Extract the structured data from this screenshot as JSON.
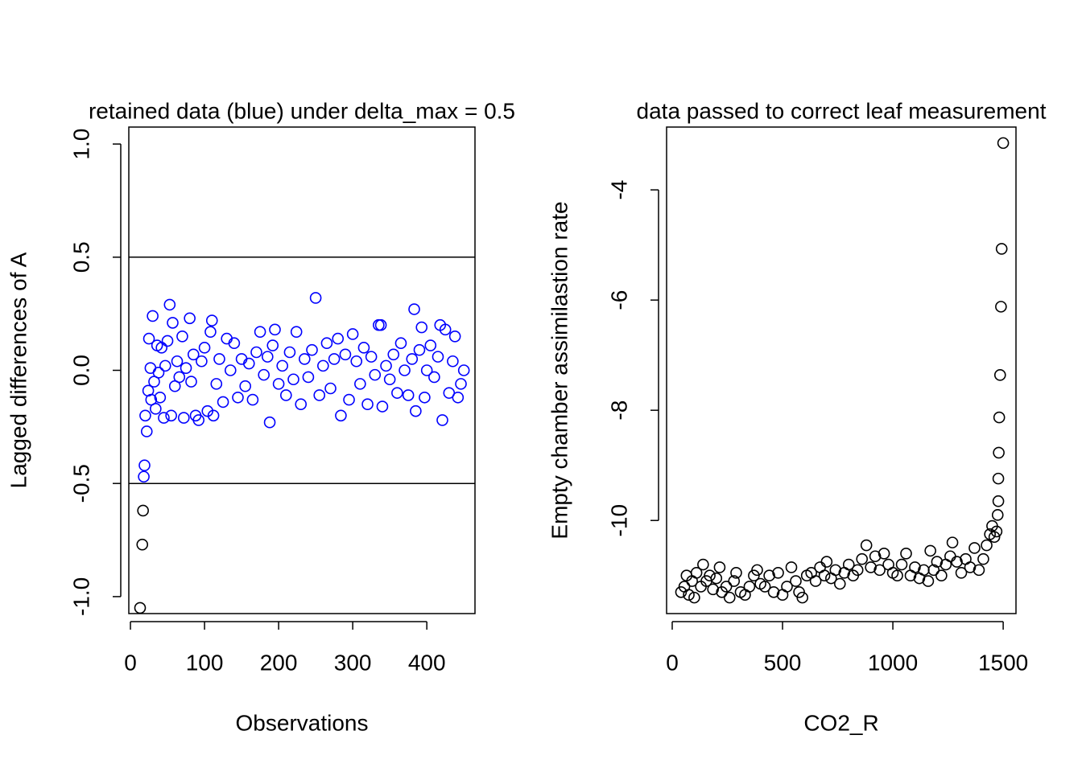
{
  "chart_data": [
    {
      "type": "scatter",
      "title": "retained data (blue) under delta_max =  0.5",
      "xlabel": "Observations",
      "ylabel": "Lagged differences of A",
      "xlim": [
        -2.2,
        465
      ],
      "ylim": [
        -1.075,
        1.075
      ],
      "xticks": [
        0,
        100,
        200,
        300,
        400
      ],
      "yticks": [
        {
          "value": -1,
          "label": "-1.0"
        },
        -0.5,
        {
          "value": 0,
          "label": "0.0"
        },
        0.5,
        {
          "value": 1,
          "label": "1.0"
        }
      ],
      "hlines": [
        -0.5,
        0.5
      ],
      "series": [
        {
          "color": "#000000",
          "x": [
            13,
            16,
            17
          ],
          "values": [
            -1.05,
            -0.77,
            -0.62
          ]
        },
        {
          "color": "#0000ff",
          "x": [
            18,
            19,
            20,
            22,
            24,
            25,
            27,
            28,
            30,
            32,
            34,
            36,
            38,
            40,
            42,
            45,
            47,
            50,
            53,
            55,
            57,
            60,
            63,
            66,
            70,
            72,
            75,
            80,
            82,
            85,
            88,
            92,
            96,
            100,
            104,
            108,
            110,
            112,
            116,
            120,
            125,
            130,
            135,
            140,
            145,
            150,
            155,
            160,
            165,
            170,
            175,
            180,
            185,
            188,
            192,
            195,
            200,
            205,
            210,
            215,
            220,
            224,
            230,
            235,
            240,
            245,
            250,
            255,
            260,
            265,
            270,
            275,
            280,
            284,
            290,
            295,
            300,
            305,
            310,
            315,
            320,
            325,
            330,
            335,
            338,
            340,
            345,
            350,
            355,
            360,
            365,
            370,
            375,
            380,
            383,
            385,
            390,
            393,
            397,
            400,
            405,
            410,
            415,
            418,
            421,
            425,
            430,
            435,
            438,
            442,
            446,
            450
          ],
          "values": [
            -0.47,
            -0.42,
            -0.2,
            -0.27,
            -0.09,
            0.14,
            0.01,
            -0.13,
            0.24,
            -0.05,
            -0.17,
            0.11,
            -0.01,
            -0.12,
            0.1,
            -0.21,
            0.02,
            0.13,
            0.29,
            -0.2,
            0.21,
            -0.07,
            0.04,
            -0.03,
            0.15,
            -0.21,
            0.01,
            0.23,
            -0.05,
            0.07,
            -0.2,
            -0.22,
            0.04,
            0.1,
            -0.18,
            0.17,
            0.22,
            -0.2,
            -0.06,
            0.05,
            -0.14,
            0.14,
            0.0,
            0.12,
            -0.12,
            0.05,
            -0.07,
            0.03,
            -0.13,
            0.08,
            0.17,
            -0.02,
            0.06,
            -0.23,
            0.11,
            0.18,
            -0.06,
            0.02,
            -0.11,
            0.08,
            -0.04,
            0.17,
            -0.15,
            0.05,
            -0.03,
            0.09,
            0.32,
            -0.11,
            0.02,
            0.12,
            -0.08,
            0.05,
            0.14,
            -0.2,
            0.07,
            -0.13,
            0.16,
            0.04,
            -0.06,
            0.1,
            -0.15,
            0.06,
            -0.02,
            0.2,
            0.2,
            -0.16,
            0.02,
            -0.04,
            0.07,
            -0.1,
            0.12,
            0.0,
            -0.11,
            0.05,
            0.27,
            -0.18,
            0.09,
            0.19,
            -0.12,
            0.0,
            0.11,
            -0.03,
            0.06,
            0.2,
            -0.22,
            0.18,
            -0.1,
            0.04,
            0.15,
            -0.12,
            -0.06,
            0.0
          ]
        }
      ]
    },
    {
      "type": "scatter",
      "title": "data passed to correct leaf measurement",
      "xlabel": "CO2_R",
      "ylabel": "Empty chamber assimilastion rate",
      "xlim": [
        -25.5,
        1558
      ],
      "ylim": [
        -11.69,
        -2.86
      ],
      "xticks": [
        0,
        500,
        1000,
        1500
      ],
      "yticks": [
        -10,
        -8,
        -6,
        -4
      ],
      "series": [
        {
          "color": "#000000",
          "x": [
            40,
            55,
            65,
            75,
            90,
            100,
            110,
            130,
            140,
            155,
            170,
            185,
            200,
            215,
            225,
            245,
            260,
            280,
            290,
            310,
            330,
            350,
            370,
            385,
            400,
            420,
            440,
            460,
            480,
            500,
            520,
            540,
            560,
            575,
            590,
            610,
            630,
            650,
            670,
            690,
            700,
            720,
            740,
            760,
            780,
            800,
            820,
            840,
            860,
            880,
            900,
            920,
            940,
            960,
            980,
            1000,
            1020,
            1040,
            1060,
            1080,
            1100,
            1120,
            1140,
            1160,
            1170,
            1185,
            1200,
            1220,
            1240,
            1260,
            1270,
            1290,
            1310,
            1330,
            1350,
            1370,
            1390,
            1410,
            1425,
            1440,
            1450,
            1460,
            1470,
            1475,
            1478,
            1478,
            1480,
            1482,
            1486,
            1490,
            1493,
            1500
          ],
          "values": [
            -11.3,
            -11.2,
            -11.0,
            -11.35,
            -11.1,
            -11.4,
            -10.95,
            -11.2,
            -10.8,
            -11.1,
            -11.0,
            -11.25,
            -11.05,
            -10.85,
            -11.3,
            -11.2,
            -11.4,
            -11.1,
            -10.95,
            -11.3,
            -11.35,
            -11.2,
            -11.0,
            -10.9,
            -11.15,
            -11.2,
            -11.0,
            -11.3,
            -10.95,
            -11.35,
            -11.2,
            -10.85,
            -11.1,
            -11.3,
            -11.4,
            -11.0,
            -10.95,
            -11.1,
            -10.85,
            -11.0,
            -10.75,
            -11.05,
            -10.9,
            -11.15,
            -10.95,
            -10.8,
            -11.0,
            -10.9,
            -10.7,
            -10.45,
            -10.85,
            -10.65,
            -10.9,
            -10.6,
            -10.8,
            -10.95,
            -11.0,
            -10.8,
            -10.6,
            -11.0,
            -10.85,
            -11.05,
            -10.9,
            -11.1,
            -10.55,
            -10.9,
            -10.75,
            -11.0,
            -10.8,
            -10.65,
            -10.4,
            -10.75,
            -10.95,
            -10.7,
            -10.85,
            -10.5,
            -10.9,
            -10.7,
            -10.45,
            -10.25,
            -10.1,
            -10.3,
            -10.2,
            -9.9,
            -9.65,
            -9.24,
            -8.77,
            -8.13,
            -7.36,
            -6.12,
            -5.07,
            -3.15
          ]
        }
      ]
    }
  ]
}
